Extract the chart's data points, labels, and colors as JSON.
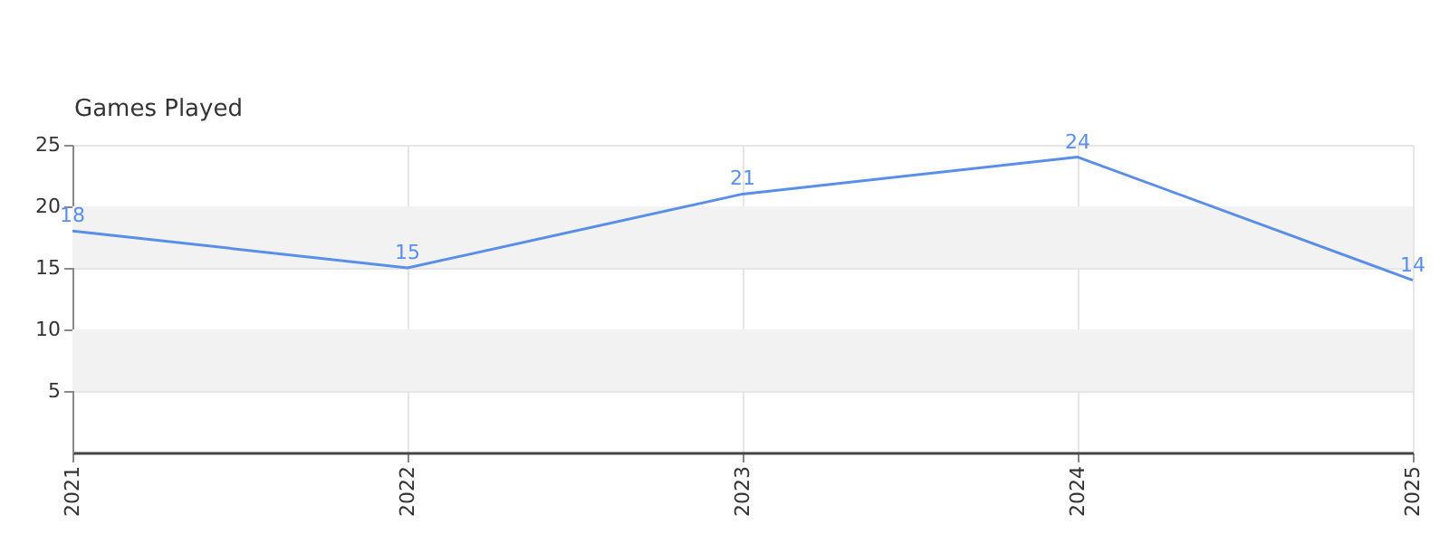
{
  "chart_data": {
    "type": "line",
    "title": "Games Played",
    "categories": [
      "2021",
      "2022",
      "2023",
      "2024",
      "2025"
    ],
    "series": [
      {
        "color": "#5b8ee6",
        "values": [
          18,
          15,
          21,
          24,
          14
        ]
      }
    ],
    "ylim": [
      0,
      25
    ],
    "yticks": [
      5,
      10,
      15,
      20,
      25
    ],
    "bands": [
      {
        "axis": "y",
        "from": 5,
        "to": 10,
        "color": "#f2f2f2"
      },
      {
        "axis": "y",
        "from": 15,
        "to": 20,
        "color": "#f2f2f2"
      }
    ],
    "grid": true,
    "data_labels": true
  }
}
